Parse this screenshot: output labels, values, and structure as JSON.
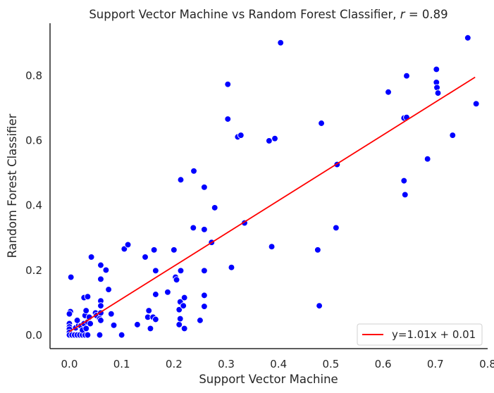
{
  "chart_data": {
    "type": "scatter",
    "title": "Support Vector Machine vs Random Forest Classifier, ",
    "title_r_symbol": "r",
    "title_r_value": " = 0.89",
    "xlabel": "Support Vector Machine",
    "ylabel": "Random Forest Classifier",
    "xlim": [
      -0.037,
      0.8
    ],
    "ylim": [
      -0.042,
      0.96
    ],
    "xticks": [
      "0.0",
      "0.1",
      "0.2",
      "0.3",
      "0.4",
      "0.5",
      "0.6",
      "0.7",
      "0.8"
    ],
    "xtick_values": [
      0.0,
      0.1,
      0.2,
      0.3,
      0.4,
      0.5,
      0.6,
      0.7,
      0.8
    ],
    "yticks": [
      "0.0",
      "0.2",
      "0.4",
      "0.6",
      "0.8"
    ],
    "ytick_values": [
      0.0,
      0.2,
      0.4,
      0.6,
      0.8
    ],
    "grid": false,
    "legend_position": "bottom-right",
    "point_color": "#0000ff",
    "line_color": "#ff0000",
    "fit": {
      "label": "y=1.01x + 0.01",
      "slope": 1.01,
      "intercept": 0.01,
      "x_range": [
        0.0,
        0.776
      ]
    },
    "points": [
      [
        0.003,
        0.178
      ],
      [
        0.002,
        0.072
      ],
      [
        0.0,
        0.065
      ],
      [
        0.0,
        0.035
      ],
      [
        0.0,
        0.025
      ],
      [
        0.0,
        0.018
      ],
      [
        0.0,
        0.008
      ],
      [
        0.0,
        0.0
      ],
      [
        0.005,
        0.0
      ],
      [
        0.01,
        0.0
      ],
      [
        0.015,
        0.0
      ],
      [
        0.02,
        0.0
      ],
      [
        0.025,
        0.0
      ],
      [
        0.03,
        0.0
      ],
      [
        0.035,
        0.0
      ],
      [
        0.012,
        0.022
      ],
      [
        0.018,
        0.03
      ],
      [
        0.015,
        0.045
      ],
      [
        0.022,
        0.028
      ],
      [
        0.025,
        0.015
      ],
      [
        0.028,
        0.035
      ],
      [
        0.032,
        0.02
      ],
      [
        0.035,
        0.04
      ],
      [
        0.03,
        0.06
      ],
      [
        0.032,
        0.075
      ],
      [
        0.028,
        0.115
      ],
      [
        0.035,
        0.118
      ],
      [
        0.04,
        0.035
      ],
      [
        0.038,
        0.055
      ],
      [
        0.042,
        0.24
      ],
      [
        0.05,
        0.068
      ],
      [
        0.052,
        0.06
      ],
      [
        0.058,
        0.05
      ],
      [
        0.06,
        0.045
      ],
      [
        0.06,
        0.068
      ],
      [
        0.06,
        0.105
      ],
      [
        0.06,
        0.09
      ],
      [
        0.06,
        0.172
      ],
      [
        0.06,
        0.215
      ],
      [
        0.058,
        0.0
      ],
      [
        0.07,
        0.2
      ],
      [
        0.075,
        0.14
      ],
      [
        0.08,
        0.065
      ],
      [
        0.085,
        0.03
      ],
      [
        0.1,
        0.0
      ],
      [
        0.105,
        0.265
      ],
      [
        0.112,
        0.278
      ],
      [
        0.13,
        0.032
      ],
      [
        0.145,
        0.24
      ],
      [
        0.15,
        0.055
      ],
      [
        0.152,
        0.075
      ],
      [
        0.155,
        0.02
      ],
      [
        0.16,
        0.055
      ],
      [
        0.165,
        0.048
      ],
      [
        0.162,
        0.262
      ],
      [
        0.165,
        0.125
      ],
      [
        0.165,
        0.198
      ],
      [
        0.188,
        0.132
      ],
      [
        0.2,
        0.262
      ],
      [
        0.203,
        0.178
      ],
      [
        0.205,
        0.17
      ],
      [
        0.21,
        0.078
      ],
      [
        0.21,
        0.032
      ],
      [
        0.212,
        0.102
      ],
      [
        0.212,
        0.05
      ],
      [
        0.213,
        0.198
      ],
      [
        0.213,
        0.478
      ],
      [
        0.218,
        0.09
      ],
      [
        0.22,
        0.115
      ],
      [
        0.22,
        0.02
      ],
      [
        0.237,
        0.33
      ],
      [
        0.238,
        0.505
      ],
      [
        0.25,
        0.045
      ],
      [
        0.258,
        0.455
      ],
      [
        0.258,
        0.325
      ],
      [
        0.258,
        0.198
      ],
      [
        0.258,
        0.122
      ],
      [
        0.258,
        0.088
      ],
      [
        0.272,
        0.285
      ],
      [
        0.278,
        0.392
      ],
      [
        0.303,
        0.772
      ],
      [
        0.303,
        0.665
      ],
      [
        0.31,
        0.208
      ],
      [
        0.322,
        0.61
      ],
      [
        0.328,
        0.615
      ],
      [
        0.335,
        0.345
      ],
      [
        0.382,
        0.598
      ],
      [
        0.387,
        0.272
      ],
      [
        0.393,
        0.605
      ],
      [
        0.404,
        0.9
      ],
      [
        0.475,
        0.262
      ],
      [
        0.478,
        0.09
      ],
      [
        0.482,
        0.652
      ],
      [
        0.51,
        0.33
      ],
      [
        0.512,
        0.525
      ],
      [
        0.61,
        0.748
      ],
      [
        0.64,
        0.668
      ],
      [
        0.64,
        0.475
      ],
      [
        0.642,
        0.432
      ],
      [
        0.645,
        0.67
      ],
      [
        0.645,
        0.798
      ],
      [
        0.685,
        0.542
      ],
      [
        0.702,
        0.818
      ],
      [
        0.702,
        0.778
      ],
      [
        0.703,
        0.762
      ],
      [
        0.705,
        0.745
      ],
      [
        0.733,
        0.615
      ],
      [
        0.762,
        0.915
      ],
      [
        0.778,
        0.712
      ]
    ]
  }
}
